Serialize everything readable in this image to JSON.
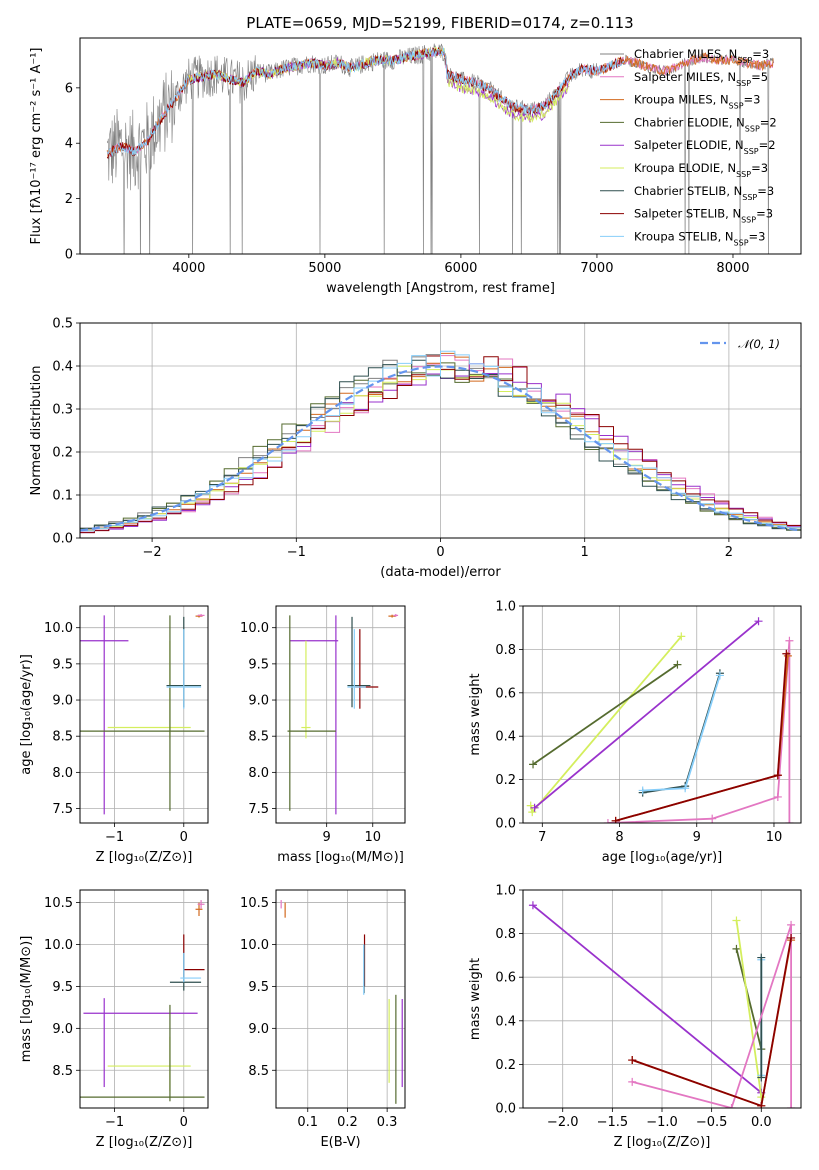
{
  "title": "PLATE=0659, MJD=52199, FIBERID=0174, z=0.113",
  "colors": {
    "Chabrier MILES": "#808080",
    "Salpeter MILES": "#e377c2",
    "Kroupa MILES": "#d2691e",
    "Chabrier ELODIE": "#556b2f",
    "Salpeter ELODIE": "#9932cc",
    "Kroupa ELODIE": "#d4ee5e",
    "Chabrier STELIB": "#2f4f4f",
    "Salpeter STELIB": "#8b0000",
    "Kroupa STELIB": "#87cefa",
    "normal": "#6495ed"
  },
  "chart_data": [
    {
      "id": "spectrum",
      "type": "line",
      "xlabel": "wavelength [Angstrom, rest frame]",
      "ylabel": "Flux [fλ10⁻¹⁷ erg cm⁻² s⁻¹ A⁻¹]",
      "xlim": [
        3200,
        8500
      ],
      "ylim": [
        0,
        7.8
      ],
      "xticks": [
        4000,
        5000,
        6000,
        7000,
        8000
      ],
      "yticks": [
        0,
        2,
        4,
        6
      ],
      "legend_location": "top-right",
      "legend": [
        "Chabrier MILES, N_SSP=3",
        "Salpeter MILES, N_SSP=5",
        "Kroupa MILES, N_SSP=3",
        "Chabrier ELODIE, N_SSP=2",
        "Salpeter ELODIE, N_SSP=2",
        "Kroupa ELODIE, N_SSP=3",
        "Chabrier STELIB, N_SSP=3",
        "Salpeter STELIB, N_SSP=3",
        "Kroupa STELIB, N_SSP=3"
      ],
      "data_x": [
        3400,
        3500,
        3600,
        3700,
        3800,
        3900,
        4000,
        4100,
        4200,
        4300,
        4400,
        4500,
        4600,
        4700,
        4800,
        4900,
        5000,
        5100,
        5200,
        5300,
        5400,
        5500,
        5600,
        5700,
        5800,
        5880,
        5900,
        6000,
        6100,
        6200,
        6300,
        6400,
        6500,
        6600,
        6700,
        6800,
        6900,
        7000,
        7100,
        7200,
        7300,
        7400,
        7500,
        7600,
        7700,
        7800,
        7900,
        8000,
        8100,
        8200,
        8300
      ],
      "data_y": [
        3.6,
        3.9,
        3.7,
        4.1,
        4.9,
        5.6,
        6.3,
        6.4,
        6.5,
        6.3,
        6.2,
        6.6,
        6.5,
        6.7,
        6.8,
        6.9,
        6.8,
        6.9,
        6.7,
        6.9,
        7.0,
        7.0,
        7.1,
        7.2,
        7.3,
        7.3,
        6.5,
        6.3,
        6.2,
        6.0,
        5.6,
        5.3,
        5.2,
        5.3,
        5.8,
        6.4,
        6.7,
        6.6,
        6.8,
        7.0,
        6.9,
        6.7,
        6.6,
        6.8,
        7.0,
        7.1,
        7.0,
        7.0,
        6.9,
        6.8,
        6.9
      ]
    },
    {
      "id": "residuals",
      "type": "histogram",
      "xlabel": "(data-model)/error",
      "ylabel": "Normed distribution",
      "xlim": [
        -2.5,
        2.5
      ],
      "ylim": [
        0,
        0.5
      ],
      "xticks": [
        -2,
        -1,
        0,
        1,
        2
      ],
      "yticks": [
        0.0,
        0.1,
        0.2,
        0.3,
        0.4,
        0.5
      ],
      "legend_location": "top-right",
      "legend": [
        "𝒩(0, 1)"
      ],
      "normal": {
        "mean": 0,
        "sigma": 1
      }
    },
    {
      "id": "age_vs_Z",
      "type": "errorbar",
      "xlabel": "Z [log₁₀(Z/Z⊙)]",
      "ylabel": "age  [log₁₀(age/yr)]",
      "xlim": [
        -1.5,
        0.35
      ],
      "ylim": [
        7.3,
        10.3
      ],
      "xticks": [
        -1,
        0
      ],
      "yticks": [
        7.5,
        8.0,
        8.5,
        9.0,
        9.5,
        10.0
      ],
      "points": [
        {
          "model": "Salpeter ELODIE",
          "x": -1.15,
          "y": 9.82,
          "xerr": [
            0.7,
            0.35
          ],
          "yerr": [
            2.4,
            0.35
          ]
        },
        {
          "model": "Kroupa ELODIE",
          "x": -0.2,
          "y": 8.62,
          "xerr": [
            0.9,
            0.3
          ],
          "yerr": [
            0.15,
            1.2
          ]
        },
        {
          "model": "Chabrier ELODIE",
          "x": -0.2,
          "y": 8.57,
          "xerr": [
            1.3,
            0.5
          ],
          "yerr": [
            1.1,
            1.6
          ]
        },
        {
          "model": "Chabrier STELIB",
          "x": 0.0,
          "y": 9.2,
          "xerr": [
            0.25,
            0.25
          ],
          "yerr": [
            0.3,
            0.95
          ]
        },
        {
          "model": "Kroupa STELIB",
          "x": 0.0,
          "y": 9.18,
          "xerr": [
            0.25,
            0.25
          ],
          "yerr": [
            0.3,
            0.8
          ]
        },
        {
          "model": "Kroupa MILES",
          "x": 0.22,
          "y": 10.16,
          "xerr": [
            0.05,
            0.05
          ],
          "yerr": [
            0.02,
            0.02
          ]
        },
        {
          "model": "Salpeter MILES",
          "x": 0.25,
          "y": 10.17,
          "xerr": [
            0.05,
            0.05
          ],
          "yerr": [
            0.02,
            0.02
          ]
        }
      ]
    },
    {
      "id": "age_vs_mass",
      "type": "errorbar",
      "xlabel": "mass [log₁₀(M/M⊙)]",
      "ylabel": "",
      "xlim": [
        7.9,
        10.7
      ],
      "ylim": [
        7.3,
        10.3
      ],
      "xticks": [
        9,
        10
      ],
      "yticks": [
        7.5,
        8.0,
        8.5,
        9.0,
        9.5,
        10.0
      ],
      "points": [
        {
          "model": "Salpeter ELODIE",
          "x": 9.2,
          "y": 9.82,
          "xerr": [
            1.0,
            0.05
          ],
          "yerr": [
            2.4,
            0.35
          ]
        },
        {
          "model": "Kroupa ELODIE",
          "x": 8.55,
          "y": 8.62,
          "xerr": [
            0.1,
            0.1
          ],
          "yerr": [
            0.15,
            1.2
          ]
        },
        {
          "model": "Chabrier ELODIE",
          "x": 8.2,
          "y": 8.57,
          "xerr": [
            0.05,
            1.0
          ],
          "yerr": [
            1.1,
            1.6
          ]
        },
        {
          "model": "Chabrier STELIB",
          "x": 9.55,
          "y": 9.2,
          "xerr": [
            0.1,
            0.4
          ],
          "yerr": [
            0.3,
            0.95
          ]
        },
        {
          "model": "Salpeter STELIB",
          "x": 9.72,
          "y": 9.18,
          "xerr": [
            0.1,
            0.4
          ],
          "yerr": [
            0.3,
            0.8
          ]
        },
        {
          "model": "Kroupa STELIB",
          "x": 9.6,
          "y": 9.18,
          "xerr": [
            0.15,
            0.25
          ],
          "yerr": [
            0.3,
            0.8
          ]
        },
        {
          "model": "Kroupa MILES",
          "x": 10.42,
          "y": 10.16,
          "xerr": [
            0.08,
            0.08
          ],
          "yerr": [
            0.02,
            0.02
          ]
        },
        {
          "model": "Salpeter MILES",
          "x": 10.5,
          "y": 10.17,
          "xerr": [
            0.05,
            0.05
          ],
          "yerr": [
            0.02,
            0.02
          ]
        }
      ]
    },
    {
      "id": "weight_vs_age",
      "type": "line",
      "xlabel": "age  [log₁₀(age/yr)]",
      "ylabel": "mass weight",
      "xlim": [
        6.75,
        10.35
      ],
      "ylim": [
        0,
        1.0
      ],
      "xticks": [
        7,
        8,
        9,
        10
      ],
      "yticks": [
        0.0,
        0.2,
        0.4,
        0.6,
        0.8,
        1.0
      ],
      "series": [
        {
          "model": "Kroupa ELODIE",
          "points": [
            [
              6.85,
              0.08
            ],
            [
              6.87,
              0.05
            ],
            [
              8.8,
              0.86
            ]
          ]
        },
        {
          "model": "Chabrier ELODIE",
          "points": [
            [
              6.88,
              0.27
            ],
            [
              8.75,
              0.73
            ]
          ]
        },
        {
          "model": "Salpeter ELODIE",
          "points": [
            [
              6.9,
              0.07
            ],
            [
              9.8,
              0.93
            ]
          ]
        },
        {
          "model": "Chabrier STELIB",
          "points": [
            [
              8.3,
              0.14
            ],
            [
              8.85,
              0.17
            ],
            [
              9.3,
              0.69
            ]
          ]
        },
        {
          "model": "Kroupa STELIB",
          "points": [
            [
              8.3,
              0.15
            ],
            [
              8.85,
              0.16
            ],
            [
              9.3,
              0.68
            ]
          ]
        },
        {
          "model": "Salpeter MILES",
          "points": [
            [
              7.85,
              0.0
            ],
            [
              9.2,
              0.02
            ],
            [
              10.05,
              0.12
            ],
            [
              10.2,
              0.84
            ],
            [
              10.2,
              0.0
            ]
          ]
        },
        {
          "model": "Kroupa MILES",
          "points": [
            [
              7.95,
              0.01
            ],
            [
              10.05,
              0.22
            ],
            [
              10.18,
              0.77
            ]
          ]
        },
        {
          "model": "Salpeter STELIB",
          "points": [
            [
              7.95,
              0.01
            ],
            [
              10.05,
              0.22
            ],
            [
              10.16,
              0.78
            ]
          ]
        }
      ]
    },
    {
      "id": "mass_vs_Z",
      "type": "errorbar",
      "xlabel": "Z [log₁₀(Z/Z⊙)]",
      "ylabel": "mass [log₁₀(M/M⊙)]",
      "xlim": [
        -1.5,
        0.35
      ],
      "ylim": [
        8.05,
        10.65
      ],
      "xticks": [
        -1,
        0
      ],
      "yticks": [
        8.5,
        9.0,
        9.5,
        10.0,
        10.5
      ],
      "points": [
        {
          "model": "Salpeter ELODIE",
          "x": -1.15,
          "y": 9.18,
          "xerr": [
            0.3,
            1.35
          ],
          "yerr": [
            0.88,
            0.18
          ]
        },
        {
          "model": "Kroupa ELODIE",
          "x": -0.2,
          "y": 8.55,
          "xerr": [
            0.9,
            0.3
          ],
          "yerr": [
            0.3,
            0.35
          ]
        },
        {
          "model": "Chabrier ELODIE",
          "x": -0.2,
          "y": 8.18,
          "xerr": [
            1.3,
            0.5
          ],
          "yerr": [
            0.05,
            1.1
          ]
        },
        {
          "model": "Salpeter STELIB",
          "x": 0.0,
          "y": 9.7,
          "xerr": [
            0.0,
            0.3
          ],
          "yerr": [
            0.1,
            0.42
          ]
        },
        {
          "model": "Chabrier STELIB",
          "x": 0.0,
          "y": 9.55,
          "xerr": [
            0.2,
            0.25
          ],
          "yerr": [
            0.1,
            0.35
          ]
        },
        {
          "model": "Kroupa STELIB",
          "x": 0.0,
          "y": 9.6,
          "xerr": [
            0.05,
            0.25
          ],
          "yerr": [
            0.05,
            0.3
          ]
        },
        {
          "model": "Kroupa MILES",
          "x": 0.22,
          "y": 10.42,
          "xerr": [
            0.05,
            0.05
          ],
          "yerr": [
            0.08,
            0.08
          ]
        },
        {
          "model": "Salpeter MILES",
          "x": 0.25,
          "y": 10.48,
          "xerr": [
            0.05,
            0.05
          ],
          "yerr": [
            0.05,
            0.05
          ]
        }
      ]
    },
    {
      "id": "mass_vs_ebv",
      "type": "errorbar",
      "xlabel": "E(B-V)",
      "ylabel": "",
      "xlim": [
        0.02,
        0.345
      ],
      "ylim": [
        8.05,
        10.65
      ],
      "xticks": [
        0.1,
        0.2,
        0.3
      ],
      "yticks": [
        8.5,
        9.0,
        9.5,
        10.0,
        10.5
      ],
      "points": [
        {
          "model": "Salpeter MILES",
          "x": 0.033,
          "y": 10.48,
          "xerr": [
            0,
            0
          ],
          "yerr": [
            0.05,
            0.05
          ]
        },
        {
          "model": "Kroupa MILES",
          "x": 0.043,
          "y": 10.42,
          "xerr": [
            0,
            0
          ],
          "yerr": [
            0.1,
            0.08
          ]
        },
        {
          "model": "Salpeter STELIB",
          "x": 0.243,
          "y": 9.8,
          "xerr": [
            0,
            0
          ],
          "yerr": [
            0.3,
            0.32
          ]
        },
        {
          "model": "Chabrier STELIB",
          "x": 0.242,
          "y": 9.7,
          "xerr": [
            0,
            0
          ],
          "yerr": [
            0.28,
            0.3
          ]
        },
        {
          "model": "Kroupa STELIB",
          "x": 0.241,
          "y": 9.7,
          "xerr": [
            0,
            0
          ],
          "yerr": [
            0.3,
            0.3
          ]
        },
        {
          "model": "Kroupa ELODIE",
          "x": 0.305,
          "y": 8.95,
          "xerr": [
            0,
            0
          ],
          "yerr": [
            0.6,
            0.4
          ]
        },
        {
          "model": "Chabrier ELODIE",
          "x": 0.322,
          "y": 8.7,
          "xerr": [
            0,
            0
          ],
          "yerr": [
            0.6,
            0.7
          ]
        },
        {
          "model": "Salpeter ELODIE",
          "x": 0.338,
          "y": 8.85,
          "xerr": [
            0,
            0
          ],
          "yerr": [
            0.55,
            0.5
          ]
        }
      ]
    },
    {
      "id": "weight_vs_Z",
      "type": "line",
      "xlabel": "Z [log₁₀(Z/Z⊙)]",
      "ylabel": "mass weight",
      "xlim": [
        -2.4,
        0.4
      ],
      "ylim": [
        0,
        1.0
      ],
      "xticks": [
        -2.0,
        -1.5,
        -1.0,
        -0.5,
        0.0
      ],
      "yticks": [
        0.0,
        0.2,
        0.4,
        0.6,
        0.8,
        1.0
      ],
      "series": [
        {
          "model": "Salpeter ELODIE",
          "points": [
            [
              -2.3,
              0.93
            ],
            [
              0.0,
              0.07
            ]
          ]
        },
        {
          "model": "Chabrier ELODIE",
          "points": [
            [
              -0.25,
              0.73
            ],
            [
              0.0,
              0.27
            ]
          ]
        },
        {
          "model": "Kroupa ELODIE",
          "points": [
            [
              -0.25,
              0.86
            ],
            [
              0.0,
              0.05
            ]
          ]
        },
        {
          "model": "Kroupa STELIB",
          "points": [
            [
              0.0,
              0.68
            ],
            [
              0.0,
              0.15
            ]
          ]
        },
        {
          "model": "Chabrier STELIB",
          "points": [
            [
              0.0,
              0.69
            ],
            [
              0.0,
              0.14
            ]
          ]
        },
        {
          "model": "Kroupa MILES",
          "points": [
            [
              -1.3,
              0.22
            ],
            [
              0.0,
              0.01
            ],
            [
              0.3,
              0.77
            ]
          ]
        },
        {
          "model": "Salpeter MILES",
          "points": [
            [
              -1.3,
              0.12
            ],
            [
              -0.3,
              0.0
            ],
            [
              0.3,
              0.84
            ],
            [
              0.3,
              0.0
            ]
          ]
        },
        {
          "model": "Salpeter STELIB",
          "points": [
            [
              -1.3,
              0.22
            ],
            [
              0.0,
              0.01
            ],
            [
              0.3,
              0.78
            ]
          ]
        }
      ]
    }
  ]
}
